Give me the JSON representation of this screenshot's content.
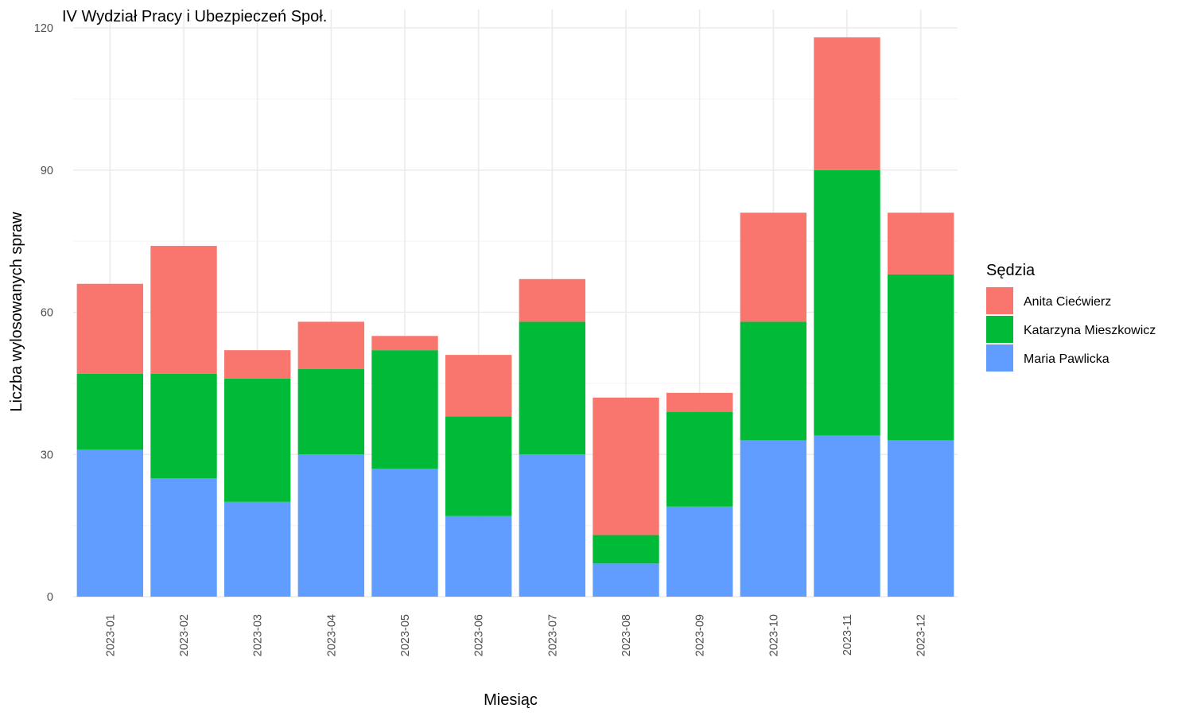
{
  "chart_data": {
    "type": "bar",
    "stacked": true,
    "title": "IV Wydział Pracy i Ubezpieczeń Społ.",
    "xlabel": "Miesiąc",
    "ylabel": "Liczba wylosowanych spraw",
    "ylim": [
      0,
      120
    ],
    "yticks": [
      0,
      30,
      60,
      90,
      120
    ],
    "grid": true,
    "legend": {
      "title": "Sędzia",
      "position": "right"
    },
    "categories": [
      "2023-01",
      "2023-02",
      "2023-03",
      "2023-04",
      "2023-05",
      "2023-06",
      "2023-07",
      "2023-08",
      "2023-09",
      "2023-10",
      "2023-11",
      "2023-12"
    ],
    "series": [
      {
        "name": "Maria Pawlicka",
        "color": "#619CFF",
        "values": [
          31,
          25,
          20,
          30,
          27,
          17,
          30,
          7,
          19,
          33,
          34,
          33
        ]
      },
      {
        "name": "Katarzyna Mieszkowicz",
        "color": "#00BA38",
        "values": [
          16,
          22,
          26,
          18,
          25,
          21,
          28,
          6,
          20,
          25,
          56,
          35
        ]
      },
      {
        "name": "Anita Ciećwierz",
        "color": "#F8766D",
        "values": [
          19,
          27,
          6,
          10,
          3,
          13,
          9,
          29,
          4,
          23,
          28,
          13
        ]
      }
    ],
    "legend_order": [
      "Anita Ciećwierz",
      "Katarzyna Mieszkowicz",
      "Maria Pawlicka"
    ]
  }
}
